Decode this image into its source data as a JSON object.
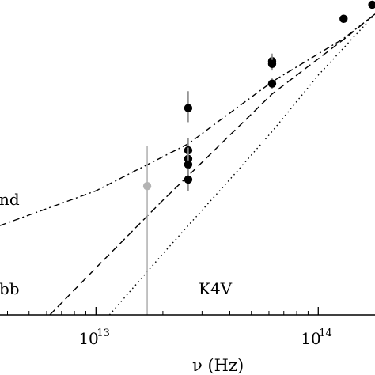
{
  "chart_data": {
    "type": "scatter",
    "x_scale": "log",
    "y_scale": "log",
    "xlabel": "ν (Hz)",
    "ylabel": "",
    "xlim": [
      3700000000000.0,
      180000000000000.0
    ],
    "ylim_decades": [
      -3.1,
      0.25
    ],
    "grid": false,
    "x_ticks": [
      {
        "value": 10000000000000.0,
        "base": "10",
        "exp": "13"
      },
      {
        "value": 100000000000000.0,
        "base": "10",
        "exp": "14"
      }
    ],
    "series": [
      {
        "name": "nd",
        "style": "dash-dot",
        "x": [
          3700000000000.0,
          10000000000000.0,
          26000000000000.0,
          62000000000000.0,
          130000000000000.0,
          180000000000000.0
        ],
        "y_decades": [
          -2.15,
          -1.78,
          -1.28,
          -0.62,
          -0.16,
          0.1
        ]
      },
      {
        "name": "bb",
        "style": "dashed",
        "x": [
          6200000000000.0,
          10000000000000.0,
          20000000000000.0,
          26000000000000.0,
          62000000000000.0,
          130000000000000.0,
          180000000000000.0
        ],
        "y_decades": [
          -3.1,
          -2.6,
          -1.88,
          -1.62,
          -0.75,
          -0.17,
          0.1
        ]
      },
      {
        "name": "K4V",
        "style": "dotted",
        "x": [
          11500000000000.0,
          20000000000000.0,
          26000000000000.0,
          40000000000000.0,
          62000000000000.0,
          100000000000000.0,
          130000000000000.0,
          180000000000000.0
        ],
        "y_decades": [
          -3.1,
          -2.45,
          -2.15,
          -1.66,
          -1.15,
          -0.55,
          -0.26,
          0.1
        ]
      }
    ],
    "points": [
      {
        "x": 17000000000000.0,
        "y_decades": -1.73,
        "err_lo": -3.1,
        "err_hi": -1.3,
        "color": "#b3b3b3"
      },
      {
        "x": 26000000000000.0,
        "y_decades": -0.9,
        "err_lo": -1.05,
        "err_hi": -0.72,
        "color": "#000000"
      },
      {
        "x": 26000000000000.0,
        "y_decades": -1.35,
        "err_lo": -1.47,
        "err_hi": -1.22,
        "color": "#000000"
      },
      {
        "x": 26000000000000.0,
        "y_decades": -1.44,
        "err_lo": -1.55,
        "err_hi": -1.32,
        "color": "#000000"
      },
      {
        "x": 26000000000000.0,
        "y_decades": -1.5,
        "err_lo": -1.62,
        "err_hi": -1.38,
        "color": "#000000"
      },
      {
        "x": 26000000000000.0,
        "y_decades": -1.66,
        "err_lo": -1.78,
        "err_hi": -1.54,
        "color": "#000000"
      },
      {
        "x": 62000000000000.0,
        "y_decades": -0.4,
        "err_lo": -0.48,
        "err_hi": -0.32,
        "color": "#000000"
      },
      {
        "x": 62000000000000.0,
        "y_decades": -0.43,
        "err_lo": -0.5,
        "err_hi": -0.35,
        "color": "#000000"
      },
      {
        "x": 62000000000000.0,
        "y_decades": -0.64,
        "err_lo": -0.7,
        "err_hi": -0.58,
        "color": "#000000"
      },
      {
        "x": 130000000000000.0,
        "y_decades": 0.05,
        "err_lo": 0.02,
        "err_hi": 0.08,
        "color": "#000000"
      },
      {
        "x": 175000000000000.0,
        "y_decades": 0.2,
        "err_lo": 0.17,
        "err_hi": 0.23,
        "color": "#000000"
      }
    ],
    "annotations": [
      "nd",
      "bb",
      "K4V"
    ]
  }
}
